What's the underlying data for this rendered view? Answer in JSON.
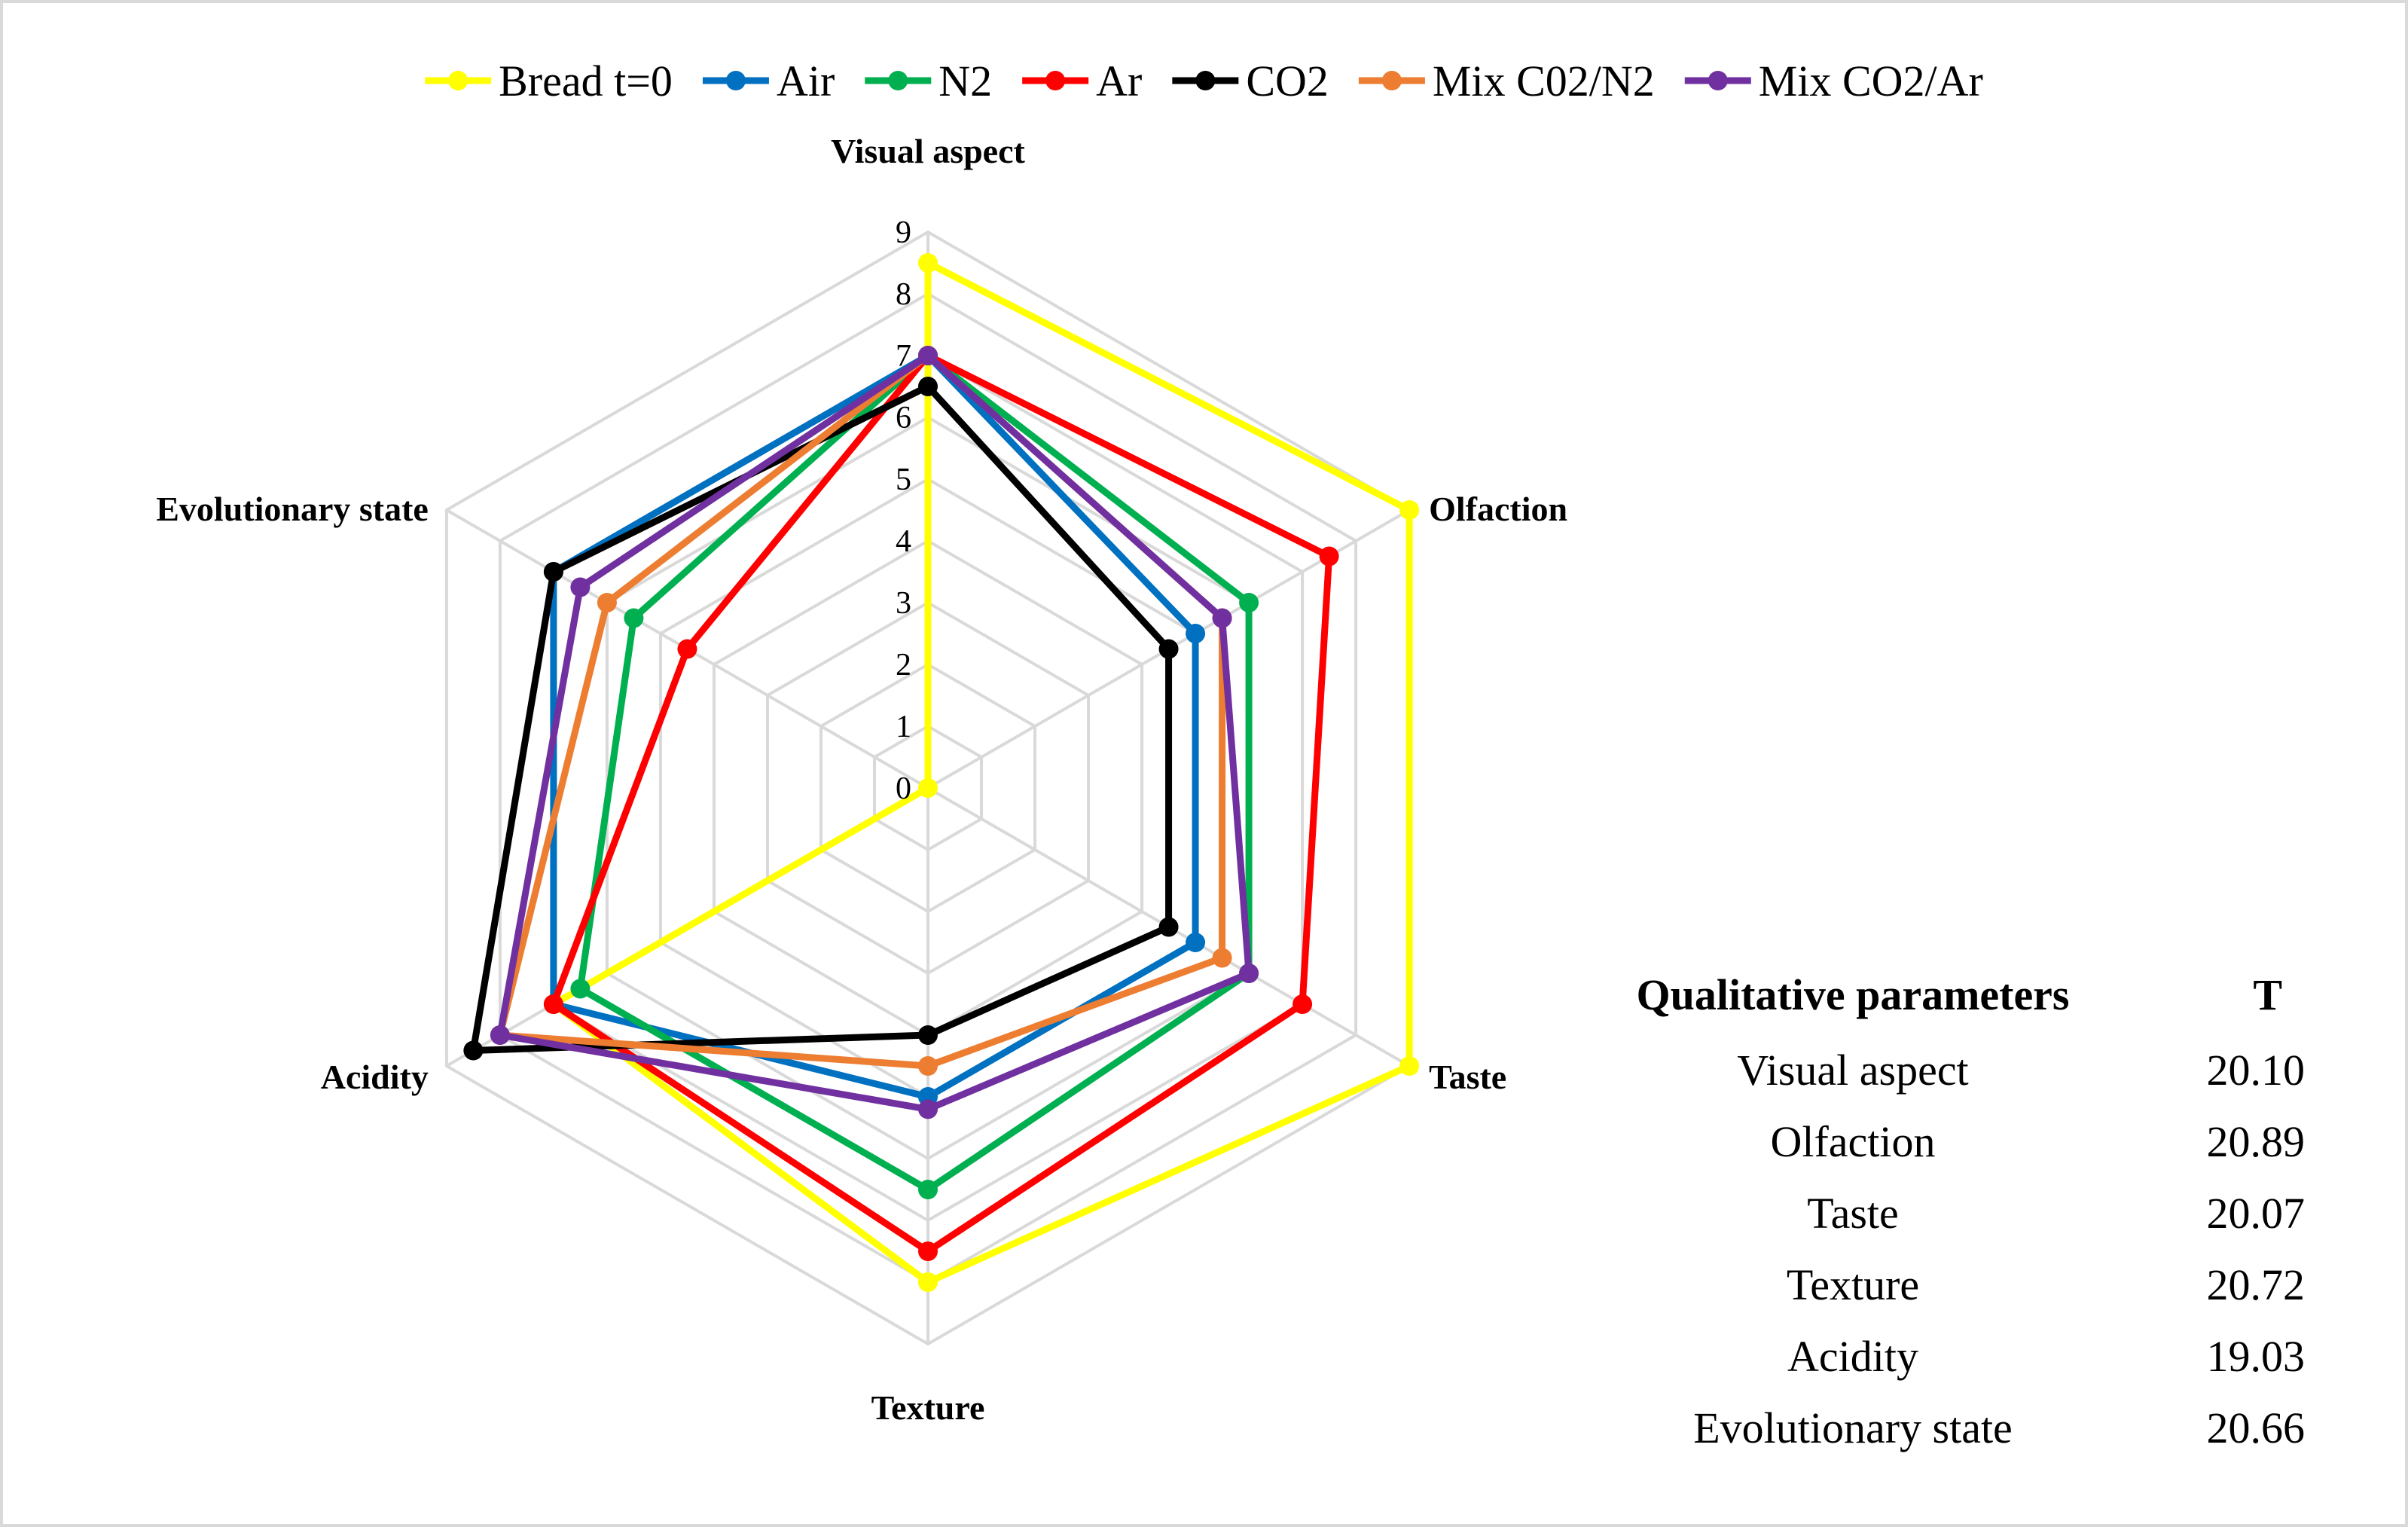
{
  "chart_data": {
    "type": "radar",
    "title": "",
    "axes": [
      "Visual aspect",
      "Olfaction",
      "Taste",
      "Texture",
      "Acidity",
      "Evolutionary state"
    ],
    "rlim": [
      0,
      9
    ],
    "ticks": [
      "0",
      "1",
      "2",
      "3",
      "4",
      "5",
      "6",
      "7",
      "8",
      "9"
    ],
    "grid": true,
    "legend_position": "top",
    "series": [
      {
        "name": "Bread t=0",
        "color": "#FFFF00",
        "values": [
          8.5,
          9,
          9,
          8,
          7,
          0
        ]
      },
      {
        "name": "Air",
        "color": "#0070C0",
        "values": [
          7,
          5,
          5,
          5,
          7,
          7
        ]
      },
      {
        "name": "N2",
        "color": "#00B050",
        "values": [
          7,
          6,
          6,
          6.5,
          6.5,
          5.5
        ]
      },
      {
        "name": "Ar",
        "color": "#FF0000",
        "values": [
          7,
          7.5,
          7,
          7.5,
          7,
          4.5
        ]
      },
      {
        "name": "CO2",
        "color": "#000000",
        "values": [
          6.5,
          4.5,
          4.5,
          4,
          8.5,
          7
        ]
      },
      {
        "name": "Mix C02/N2",
        "color": "#ED7D31",
        "values": [
          7,
          5.5,
          5.5,
          4.5,
          8,
          6
        ]
      },
      {
        "name": "Mix CO2/Ar",
        "color": "#7030A0",
        "values": [
          7,
          5.5,
          6,
          5.2,
          8,
          6.5
        ]
      }
    ]
  },
  "table": {
    "headers": [
      "Qualitative parameters",
      "T"
    ],
    "rows": [
      [
        "Visual aspect",
        "20.10"
      ],
      [
        "Olfaction",
        "20.89"
      ],
      [
        "Taste",
        "20.07"
      ],
      [
        "Texture",
        "20.72"
      ],
      [
        "Acidity",
        "19.03"
      ],
      [
        "Evolutionary state",
        "20.66"
      ]
    ]
  }
}
